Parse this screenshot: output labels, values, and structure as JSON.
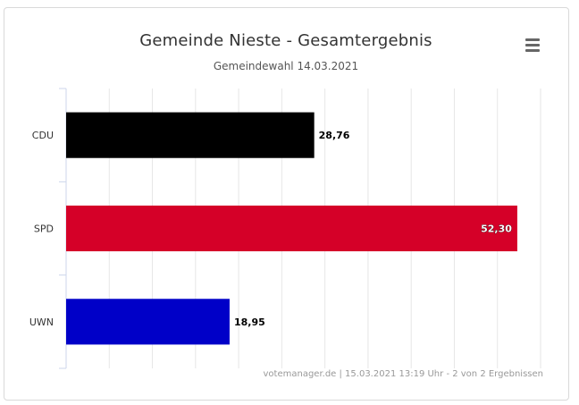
{
  "chart_data": {
    "type": "bar",
    "orientation": "horizontal",
    "title": "Gemeinde Nieste - Gesamtergebnis",
    "subtitle": "Gemeindewahl 14.03.2021",
    "categories": [
      "CDU",
      "SPD",
      "UWN"
    ],
    "values": [
      28.76,
      52.3,
      18.95
    ],
    "value_labels": [
      "28,76",
      "52,30",
      "18,95"
    ],
    "colors": [
      "#000000",
      "#d50028",
      "#0000c8"
    ],
    "xlim": [
      0,
      55
    ],
    "grid": true,
    "legend": "none"
  },
  "menu": {
    "icon": "hamburger-menu-icon"
  },
  "credits": {
    "text": "votemanager.de | 15.03.2021 13:19 Uhr - 2 von 2 Ergebnissen"
  }
}
